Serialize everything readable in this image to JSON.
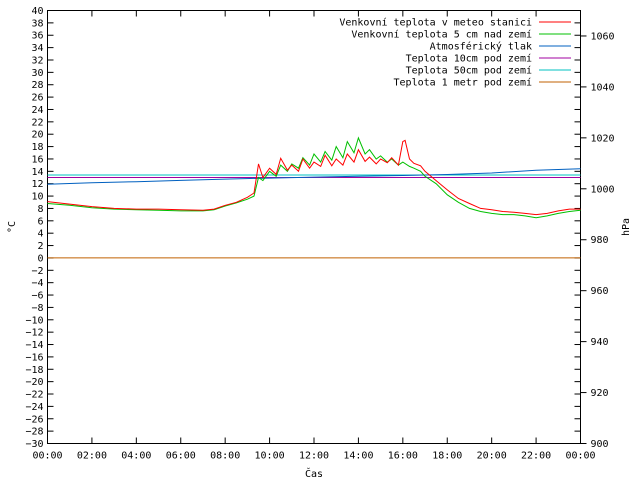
{
  "chart_data": {
    "type": "line",
    "xlabel": "Čas",
    "ylabel_left": "°C",
    "ylabel_right": "hPa",
    "ylim_left": [
      -30,
      40
    ],
    "ylim_right": [
      900,
      1070
    ],
    "yticks_left": [
      40,
      38,
      36,
      34,
      32,
      30,
      28,
      26,
      24,
      22,
      20,
      18,
      16,
      14,
      12,
      10,
      8,
      6,
      4,
      2,
      0,
      -2,
      -4,
      -6,
      -8,
      -10,
      -12,
      -14,
      -16,
      -18,
      -20,
      -22,
      -24,
      -26,
      -28,
      -30
    ],
    "yticks_right": [
      1060,
      1040,
      1020,
      1000,
      980,
      960,
      940,
      920,
      900
    ],
    "xlim_hours": [
      0,
      24
    ],
    "xticks": [
      "00:00",
      "02:00",
      "04:00",
      "06:00",
      "08:00",
      "10:00",
      "12:00",
      "14:00",
      "16:00",
      "18:00",
      "20:00",
      "22:00",
      "00:00"
    ],
    "legend_position": "top-right",
    "series": [
      {
        "name": "Venkovní teplota v meteo stanici",
        "color": "#ff0000",
        "axis": "left",
        "x": [
          0,
          1,
          2,
          3,
          4,
          5,
          6,
          7,
          7.5,
          8,
          8.5,
          9,
          9.3,
          9.5,
          9.7,
          10,
          10.3,
          10.5,
          10.8,
          11,
          11.3,
          11.5,
          11.8,
          12,
          12.3,
          12.5,
          12.8,
          13,
          13.3,
          13.5,
          13.8,
          14,
          14.3,
          14.5,
          14.8,
          15,
          15.3,
          15.5,
          15.8,
          16,
          16.1,
          16.3,
          16.5,
          16.8,
          17,
          17.5,
          18,
          18.5,
          19,
          19.5,
          20,
          20.5,
          21,
          21.5,
          22,
          22.5,
          23,
          23.5,
          24
        ],
        "y": [
          9.1,
          8.7,
          8.3,
          8.0,
          7.9,
          7.9,
          7.8,
          7.7,
          7.9,
          8.5,
          9.0,
          9.8,
          10.5,
          15.2,
          13.0,
          14.5,
          13.5,
          16.1,
          14.2,
          15.0,
          14.0,
          16.0,
          14.5,
          15.5,
          14.8,
          16.6,
          14.9,
          16.0,
          15.0,
          16.8,
          15.5,
          17.5,
          15.6,
          16.3,
          15.2,
          16.0,
          15.4,
          16.2,
          15.0,
          18.8,
          19.0,
          16.0,
          15.3,
          14.9,
          14.0,
          12.5,
          11.0,
          9.6,
          8.8,
          8.0,
          7.8,
          7.5,
          7.4,
          7.2,
          7.0,
          7.2,
          7.6,
          7.9,
          7.9
        ]
      },
      {
        "name": "Venkovní teplota 5 cm nad zemí",
        "color": "#00c000",
        "axis": "left",
        "x": [
          0,
          1,
          2,
          3,
          4,
          5,
          6,
          7,
          7.5,
          8,
          8.5,
          9,
          9.3,
          9.5,
          9.7,
          10,
          10.3,
          10.5,
          10.8,
          11,
          11.3,
          11.5,
          11.8,
          12,
          12.3,
          12.5,
          12.8,
          13,
          13.3,
          13.5,
          13.8,
          14,
          14.3,
          14.5,
          14.8,
          15,
          15.3,
          15.5,
          15.8,
          16,
          16.3,
          16.5,
          16.8,
          17,
          17.5,
          18,
          18.5,
          19,
          19.5,
          20,
          20.5,
          21,
          21.5,
          22,
          22.5,
          23,
          23.5,
          24
        ],
        "y": [
          8.8,
          8.5,
          8.1,
          7.9,
          7.8,
          7.7,
          7.6,
          7.6,
          7.8,
          8.4,
          8.9,
          9.5,
          10.0,
          13.0,
          12.5,
          14.0,
          13.2,
          15.0,
          14.0,
          15.2,
          14.5,
          16.2,
          15.0,
          16.8,
          15.5,
          17.2,
          15.8,
          18.0,
          16.2,
          18.8,
          17.0,
          19.4,
          16.8,
          17.5,
          16.0,
          16.5,
          15.5,
          16.0,
          15.0,
          15.5,
          14.8,
          14.5,
          14.0,
          13.2,
          12.0,
          10.2,
          9.0,
          8.0,
          7.5,
          7.2,
          7.0,
          7.0,
          6.8,
          6.5,
          6.8,
          7.2,
          7.5,
          7.7
        ]
      },
      {
        "name": "Atmosférický tlak",
        "color": "#0060c0",
        "axis": "right",
        "x": [
          0,
          2,
          4,
          6,
          8,
          10,
          12,
          14,
          16,
          18,
          20,
          22,
          24
        ],
        "y": [
          1001.8,
          1002.4,
          1002.8,
          1003.3,
          1003.8,
          1004.2,
          1004.6,
          1004.9,
          1005.2,
          1005.6,
          1006.2,
          1007.3,
          1007.9
        ]
      },
      {
        "name": "Teplota 10cm pod zemí",
        "color": "#a000a0",
        "axis": "left",
        "x": [
          0,
          24
        ],
        "y": [
          13.0,
          13.0
        ]
      },
      {
        "name": "Teplota 50cm pod zemí",
        "color": "#00c0c0",
        "axis": "left",
        "x": [
          0,
          24
        ],
        "y": [
          13.4,
          13.4
        ]
      },
      {
        "name": "Teplota 1 metr pod zemí",
        "color": "#c06000",
        "axis": "left",
        "x": [
          0,
          24
        ],
        "y": [
          0,
          0
        ]
      }
    ]
  }
}
